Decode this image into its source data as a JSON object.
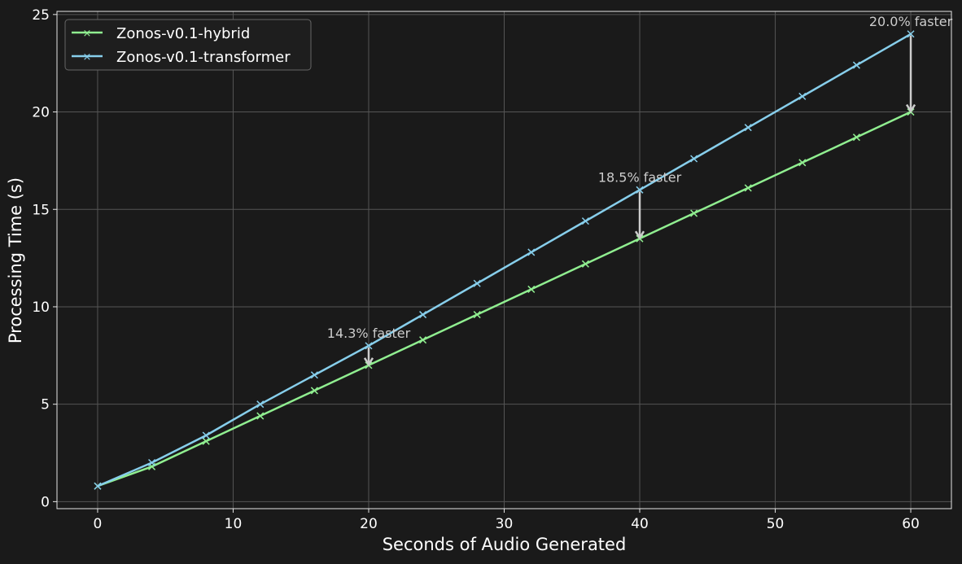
{
  "chart_data": {
    "type": "line",
    "title": "",
    "xlabel": "Seconds of Audio Generated",
    "ylabel": "Processing Time (s)",
    "xlim": [
      -3,
      63
    ],
    "ylim": [
      -0.36,
      25.16
    ],
    "xticks": [
      0,
      10,
      20,
      30,
      40,
      50,
      60
    ],
    "yticks": [
      0,
      5,
      10,
      15,
      20,
      25
    ],
    "grid": true,
    "legend_position": "top-left",
    "x": [
      0,
      4,
      8,
      12,
      16,
      20,
      24,
      28,
      32,
      36,
      40,
      44,
      48,
      52,
      56,
      60
    ],
    "series": [
      {
        "name": "Zonos-v0.1-hybrid",
        "color": "#90ee90",
        "marker": "x",
        "values": [
          0.8,
          1.8,
          3.1,
          4.4,
          5.7,
          7.0,
          8.3,
          9.6,
          10.9,
          12.2,
          13.5,
          14.8,
          16.1,
          17.4,
          18.7,
          20.0
        ]
      },
      {
        "name": "Zonos-v0.1-transformer",
        "color": "#87ceeb",
        "marker": "x",
        "values": [
          0.8,
          2.0,
          3.4,
          5.0,
          6.5,
          8.0,
          9.6,
          11.2,
          12.8,
          14.4,
          16.0,
          17.6,
          19.2,
          20.8,
          22.4,
          24.0
        ]
      }
    ],
    "annotations": [
      {
        "text": "14.3% faster",
        "x": 20,
        "from": 8.0,
        "to": 7.0
      },
      {
        "text": "18.5% faster",
        "x": 40,
        "from": 16.0,
        "to": 13.5
      },
      {
        "text": "20.0% faster",
        "x": 60,
        "from": 24.0,
        "to": 20.0
      }
    ],
    "background": "#1a1a1a",
    "annotation_color": "#cccccc"
  }
}
